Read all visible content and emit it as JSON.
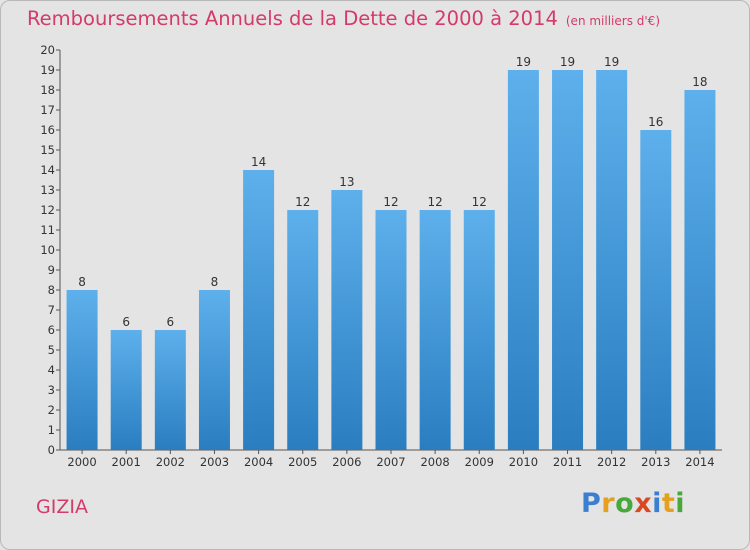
{
  "title": "Remboursements Annuels de la Dette de 2000 à 2014",
  "unit": "(en milliers d'€)",
  "commune": "GIZIA",
  "logo": {
    "text": "Proxiti",
    "letters": [
      {
        "ch": "P",
        "color": "#3a7fd0"
      },
      {
        "ch": "r",
        "color": "#e6a020"
      },
      {
        "ch": "o",
        "color": "#49a83a"
      },
      {
        "ch": "x",
        "color": "#d84a24"
      },
      {
        "ch": "i",
        "color": "#3a7fd0"
      },
      {
        "ch": "t",
        "color": "#e6a020"
      },
      {
        "ch": "i",
        "color": "#49a83a"
      }
    ]
  },
  "chart_data": {
    "type": "bar",
    "title": "Remboursements Annuels de la Dette de 2000 à 2014",
    "xlabel": "",
    "ylabel": "",
    "categories": [
      "2000",
      "2001",
      "2002",
      "2003",
      "2004",
      "2005",
      "2006",
      "2007",
      "2008",
      "2009",
      "2010",
      "2011",
      "2012",
      "2013",
      "2014"
    ],
    "values": [
      8,
      6,
      6,
      8,
      14,
      12,
      13,
      12,
      12,
      12,
      19,
      19,
      19,
      16,
      18
    ],
    "ylim": [
      0,
      20
    ],
    "yticks": [
      0,
      1,
      2,
      3,
      4,
      5,
      6,
      7,
      8,
      9,
      10,
      11,
      12,
      13,
      14,
      15,
      16,
      17,
      18,
      19,
      20
    ],
    "grid": false,
    "bar_color_top": "#5eb0ec",
    "bar_color_bottom": "#2a7ec0"
  }
}
